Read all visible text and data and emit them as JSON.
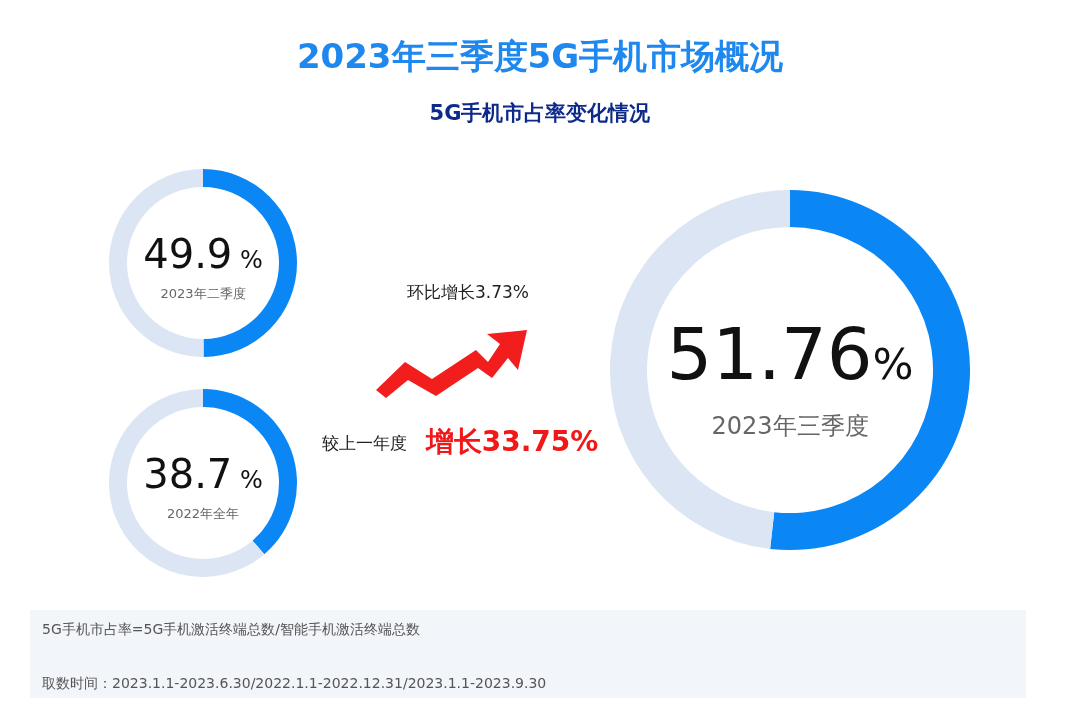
{
  "chart_data": [
    {
      "type": "other",
      "title": "2023年三季度5G手机市场概况",
      "subtitle": "5G手机市占率变化情况",
      "annotations": [
        "环比增长3.73%",
        "较上一年度",
        "增长33.75%",
        "5G手机市占率=5G手机激活终端总数/智能手机激活终端总数",
        "取数时间：2023.1.1-2023.6.30/2022.1.1-2022.12.31/2023.1.1-2023.9.30"
      ]
    },
    {
      "type": "donut",
      "categories": [
        "2023年二季度",
        null
      ],
      "values": [
        49.9,
        50.1
      ],
      "colors": [
        "#0a86f5",
        "#dce5f4"
      ],
      "value_labels": [
        "49.9 %",
        null
      ]
    },
    {
      "type": "donut",
      "categories": [
        "2022年全年",
        null
      ],
      "values": [
        38.7,
        61.3
      ],
      "colors": [
        "#0a86f5",
        "#dce5f4"
      ],
      "value_labels": [
        "38.7 %",
        null
      ]
    },
    {
      "type": "donut",
      "categories": [
        "2023年三季度",
        null
      ],
      "values": [
        51.76,
        48.24
      ],
      "colors": [
        "#0a86f5",
        "#dce5f4"
      ],
      "value_labels": [
        "51.76%",
        null
      ]
    }
  ]
}
